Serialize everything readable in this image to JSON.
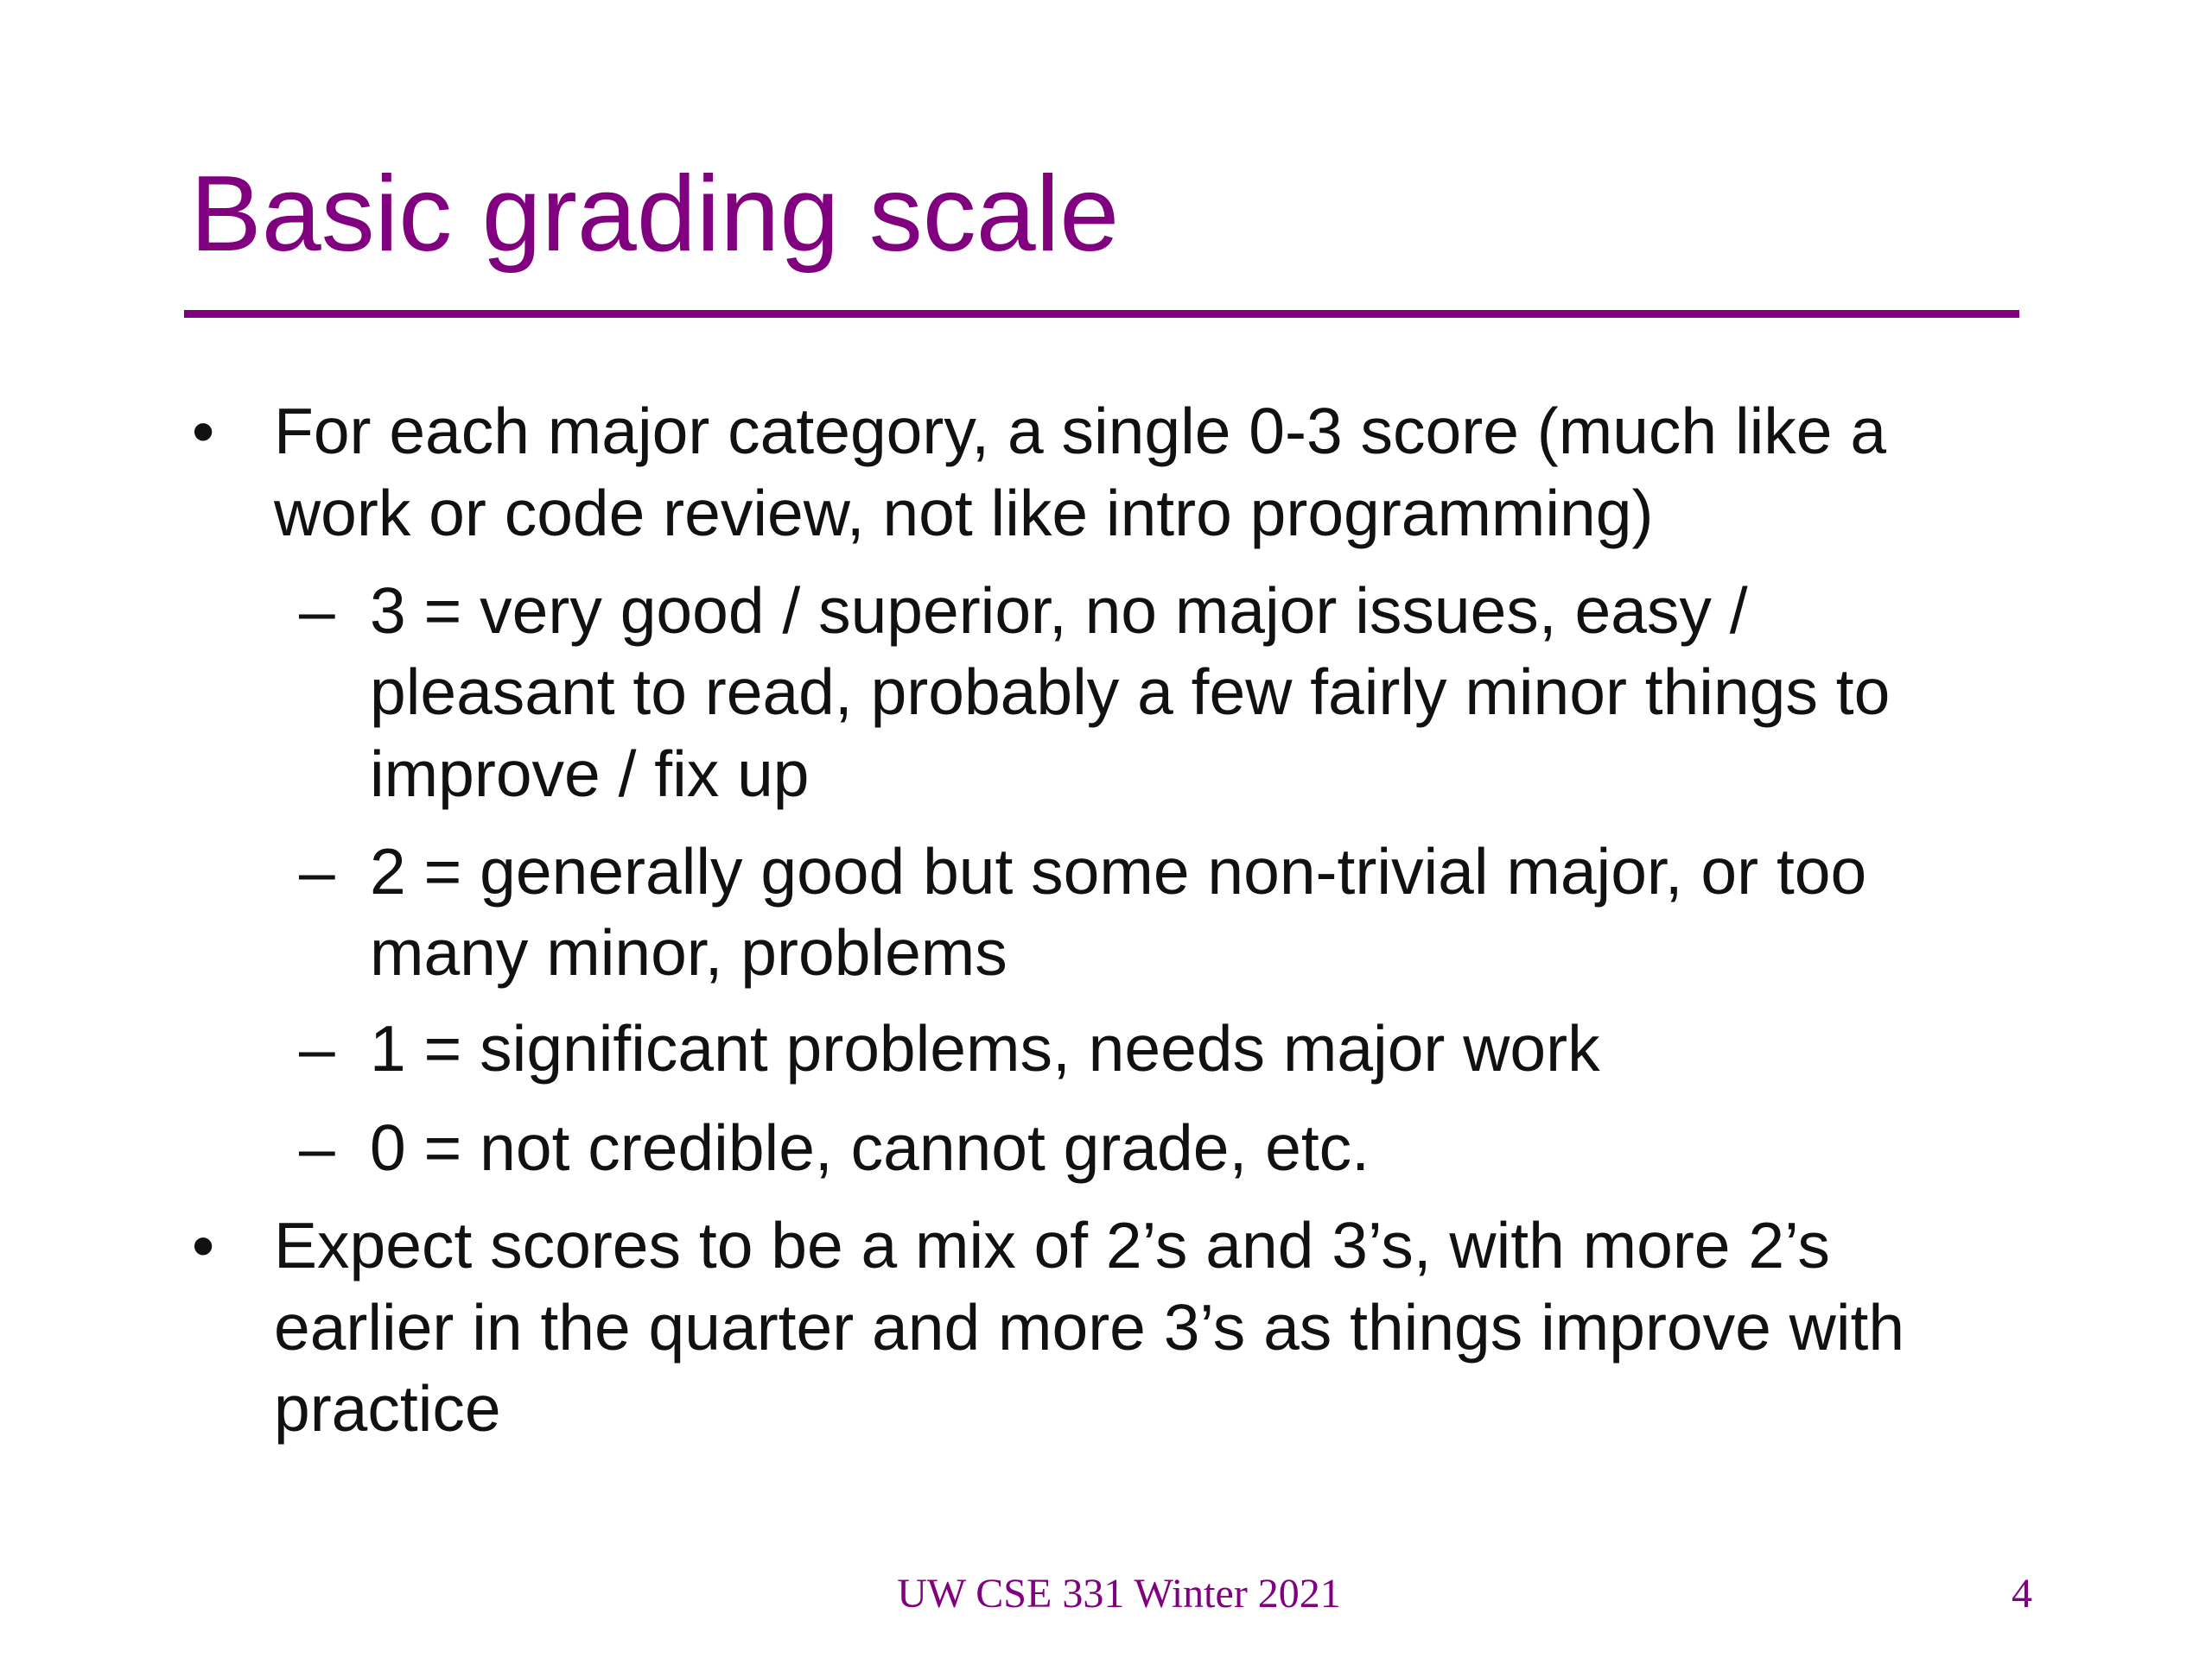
{
  "slide": {
    "title": "Basic grading scale",
    "accent_color": "#800080",
    "bullet_marker": "•",
    "sub_marker": "–",
    "items": [
      {
        "level": 1,
        "lines": [
          "For each major category, a single 0-3 score (much like a",
          "work or code review, not like intro programming)"
        ]
      },
      {
        "level": 2,
        "lines": [
          "3 = very good / superior, no major issues, easy /",
          "pleasant to read, probably a few fairly minor things to",
          "improve / fix up"
        ]
      },
      {
        "level": 2,
        "lines": [
          "2 = generally good but some non-trivial major, or too",
          "many minor, problems"
        ]
      },
      {
        "level": 2,
        "lines": [
          "1 = significant problems, needs major work"
        ]
      },
      {
        "level": 2,
        "lines": [
          "0 = not credible, cannot grade, etc."
        ]
      },
      {
        "level": 1,
        "lines": [
          "Expect scores to be a mix of 2’s and 3’s, with more 2’s",
          "earlier in the quarter and more 3’s as things improve with",
          "practice"
        ]
      }
    ],
    "footer": "UW CSE 331 Winter 2021",
    "page_number": "4"
  }
}
